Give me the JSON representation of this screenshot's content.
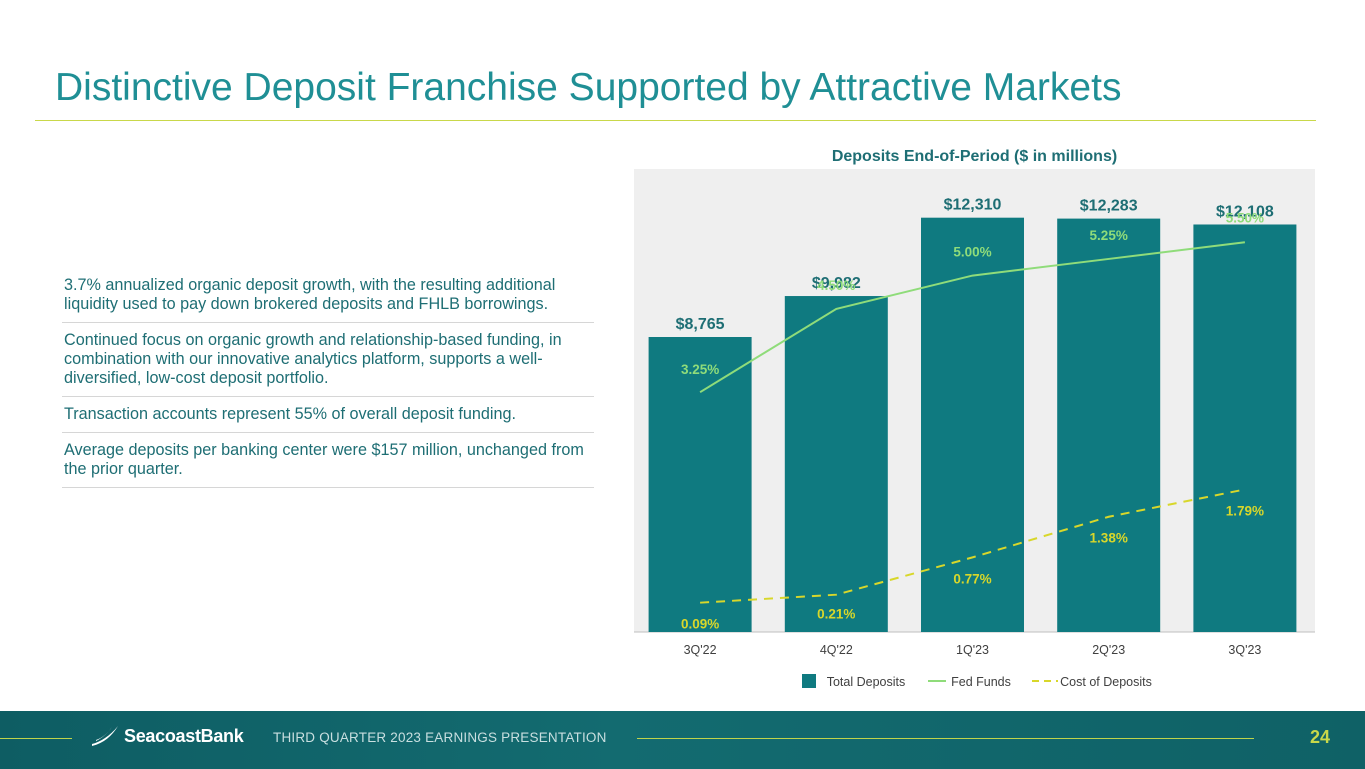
{
  "slide": {
    "title": "Distinctive Deposit Franchise Supported by Attractive Markets",
    "bullets": [
      "3.7% annualized organic deposit growth, with the resulting additional liquidity used to pay down brokered deposits and FHLB borrowings.",
      "Continued focus on organic growth and relationship-based funding, in combination with our innovative analytics platform, supports a well-diversified, low-cost deposit portfolio.",
      "Transaction accounts represent 55% of overall deposit funding.",
      "Average deposits per banking center were $157 million, unchanged from the prior quarter."
    ]
  },
  "footer": {
    "logo_text": "SeacoastBank",
    "presentation": "THIRD QUARTER 2023 EARNINGS PRESENTATION",
    "page": "24"
  },
  "chart_data": {
    "type": "bar",
    "title": "Deposits End-of-Period ($ in millions)",
    "categories": [
      "3Q'22",
      "4Q'22",
      "1Q'23",
      "2Q'23",
      "3Q'23"
    ],
    "series": [
      {
        "name": "Total Deposits",
        "kind": "bar",
        "values": [
          8765,
          9982,
          12310,
          12283,
          12108
        ],
        "labels": [
          "$8,765",
          "$9,982",
          "$12,310",
          "$12,283",
          "$12,108"
        ],
        "color": "#0f7a80"
      },
      {
        "name": "Fed Funds",
        "kind": "line",
        "values": [
          3.25,
          4.5,
          5.0,
          5.25,
          5.5
        ],
        "labels": [
          "3.25%",
          "4.50%",
          "5.00%",
          "5.25%",
          "5.50%"
        ],
        "color": "#8fdc7a"
      },
      {
        "name": "Cost of Deposits",
        "kind": "line-dashed",
        "values": [
          0.09,
          0.21,
          0.77,
          1.38,
          1.79
        ],
        "labels": [
          "0.09%",
          "0.21%",
          "0.77%",
          "1.38%",
          "1.79%"
        ],
        "color": "#d8d72a"
      }
    ],
    "legend_position": "bottom",
    "grid": false,
    "colors": {
      "panel": "#efefef",
      "axis_text": "#404040",
      "bar_label": "#1e6e74"
    }
  }
}
